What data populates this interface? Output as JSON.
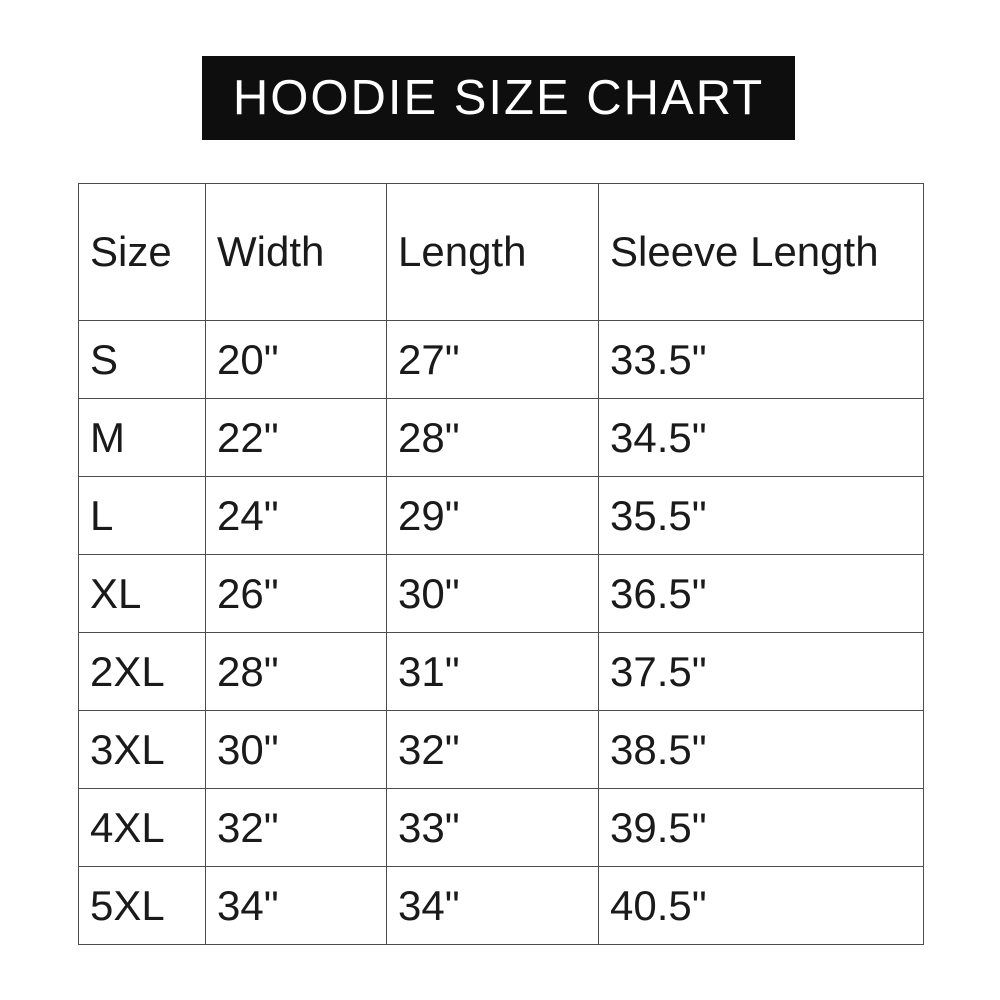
{
  "page": {
    "background": "#ffffff"
  },
  "banner": {
    "title": "HOODIE SIZE CHART",
    "background": "#0e0e0e",
    "text_color": "#ffffff"
  },
  "table": {
    "headers": [
      "Size",
      "Width",
      "Length",
      "Sleeve Length"
    ],
    "rows": [
      [
        "S",
        "20\"",
        "27\"",
        "33.5\""
      ],
      [
        "M",
        "22\"",
        "28\"",
        "34.5\""
      ],
      [
        "L",
        "24\"",
        "29\"",
        "35.5\""
      ],
      [
        "XL",
        "26\"",
        "30\"",
        "36.5\""
      ],
      [
        "2XL",
        "28\"",
        "31\"",
        "37.5\""
      ],
      [
        "3XL",
        "30\"",
        "32\"",
        "38.5\""
      ],
      [
        "4XL",
        "32\"",
        "33\"",
        "39.5\""
      ],
      [
        "5XL",
        "34\"",
        "34\"",
        "40.5\""
      ]
    ],
    "border_color": "#4d4d4d",
    "text_color": "#1a1a1a"
  },
  "chart_data": {
    "type": "table",
    "title": "HOODIE SIZE CHART",
    "units": "inches",
    "columns": [
      "Size",
      "Width",
      "Length",
      "Sleeve Length"
    ],
    "rows": [
      {
        "size": "S",
        "width_in": 20,
        "length_in": 27,
        "sleeve_length_in": 33.5
      },
      {
        "size": "M",
        "width_in": 22,
        "length_in": 28,
        "sleeve_length_in": 34.5
      },
      {
        "size": "L",
        "width_in": 24,
        "length_in": 29,
        "sleeve_length_in": 35.5
      },
      {
        "size": "XL",
        "width_in": 26,
        "length_in": 30,
        "sleeve_length_in": 36.5
      },
      {
        "size": "2XL",
        "width_in": 28,
        "length_in": 31,
        "sleeve_length_in": 37.5
      },
      {
        "size": "3XL",
        "width_in": 30,
        "length_in": 32,
        "sleeve_length_in": 38.5
      },
      {
        "size": "4XL",
        "width_in": 32,
        "length_in": 33,
        "sleeve_length_in": 39.5
      },
      {
        "size": "5XL",
        "width_in": 34,
        "length_in": 34,
        "sleeve_length_in": 40.5
      }
    ]
  }
}
